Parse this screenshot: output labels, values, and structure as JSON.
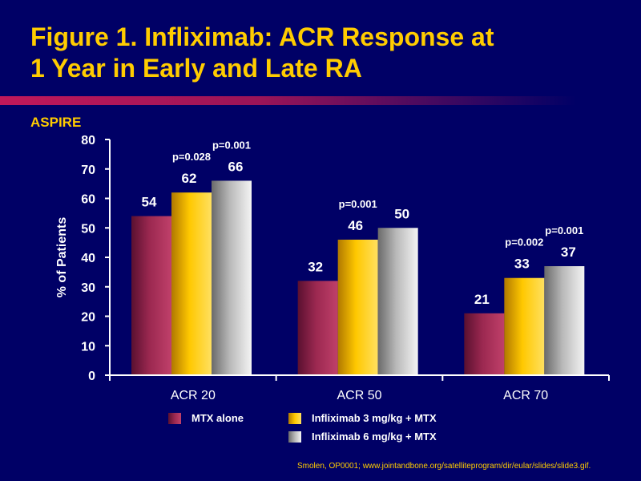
{
  "title": {
    "line1": "Figure 1. Infliximab: ACR Response at",
    "line2": "1 Year in Early and Late RA"
  },
  "study_label": "ASPIRE",
  "source": "Smolen, OP0001; www.jointandbone.org/satelliteprogram/dir/eular/slides/slide3.gif.",
  "colors": {
    "background": "#000066",
    "title": "#ffcc00",
    "series": [
      "#9b2850",
      "#ffc800",
      "#b8b8b8"
    ]
  },
  "legend": [
    {
      "label": "MTX alone"
    },
    {
      "label": "Infliximab 3 mg/kg + MTX"
    },
    {
      "label": "Infliximab 6 mg/kg + MTX"
    }
  ],
  "chart_data": {
    "type": "bar",
    "ylabel": "% of Patients",
    "ylim": [
      0,
      80
    ],
    "yticks": [
      0,
      10,
      20,
      30,
      40,
      50,
      60,
      70,
      80
    ],
    "categories": [
      "ACR 20",
      "ACR 50",
      "ACR 70"
    ],
    "series": [
      {
        "name": "MTX alone",
        "values": [
          54,
          32,
          21
        ]
      },
      {
        "name": "Infliximab 3 mg/kg + MTX",
        "values": [
          62,
          46,
          33
        ]
      },
      {
        "name": "Infliximab 6 mg/kg + MTX",
        "values": [
          66,
          50,
          37
        ]
      }
    ],
    "annotations": [
      {
        "category": 0,
        "series": 1,
        "text": "p=0.028"
      },
      {
        "category": 0,
        "series": 2,
        "text": "p=0.001"
      },
      {
        "category": 1,
        "series": 1,
        "text": "p=0.001"
      },
      {
        "category": 2,
        "series": 1,
        "text": "p=0.002"
      },
      {
        "category": 2,
        "series": 2,
        "text": "p=0.001"
      }
    ],
    "grid": false,
    "legend_position": "bottom"
  }
}
